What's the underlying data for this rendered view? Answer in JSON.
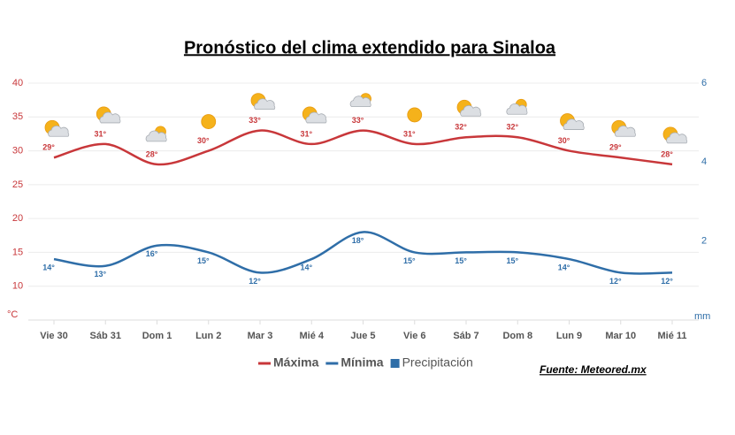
{
  "chart_data": {
    "type": "line",
    "title": "Pronóstico del clima extendido para Sinaloa",
    "y_label": "°C",
    "y2_label": "mm",
    "source": "Fuente: Meteored.mx",
    "categories": [
      "Vie 30",
      "Sáb 31",
      "Dom 1",
      "Lun 2",
      "Mar 3",
      "Mié 4",
      "Jue 5",
      "Vie 6",
      "Sáb 7",
      "Dom 8",
      "Lun 9",
      "Mar 10",
      "Mié 11"
    ],
    "series": [
      {
        "name": "Máxima",
        "color": "#c8373a",
        "values": [
          29,
          31,
          28,
          30,
          33,
          31,
          33,
          31,
          32,
          32,
          30,
          29,
          28
        ],
        "value_labels": [
          "29°",
          "31°",
          "28°",
          "30°",
          "33°",
          "31°",
          "33°",
          "31°",
          "32°",
          "32°",
          "30°",
          "29°",
          "28°"
        ]
      },
      {
        "name": "Mínima",
        "color": "#2f6ea8",
        "values": [
          14,
          13,
          16,
          15,
          12,
          14,
          18,
          15,
          15,
          15,
          14,
          12,
          12
        ],
        "value_labels": [
          "14°",
          "13°",
          "16°",
          "15°",
          "12°",
          "14°",
          "18°",
          "15°",
          "15°",
          "15°",
          "14°",
          "12°",
          "12°"
        ]
      },
      {
        "name": "Precipitación",
        "color": "#2f6ea8",
        "axis": "y2",
        "values": [
          null,
          null,
          null,
          null,
          null,
          null,
          null,
          null,
          null,
          null,
          null,
          null,
          null
        ]
      }
    ],
    "ylim": [
      5,
      40
    ],
    "yticks": [
      10,
      15,
      20,
      25,
      30,
      35,
      40
    ],
    "y2lim": [
      0,
      6
    ],
    "y2ticks": [
      2,
      4,
      6
    ],
    "grid": true,
    "legend": "bottom"
  }
}
